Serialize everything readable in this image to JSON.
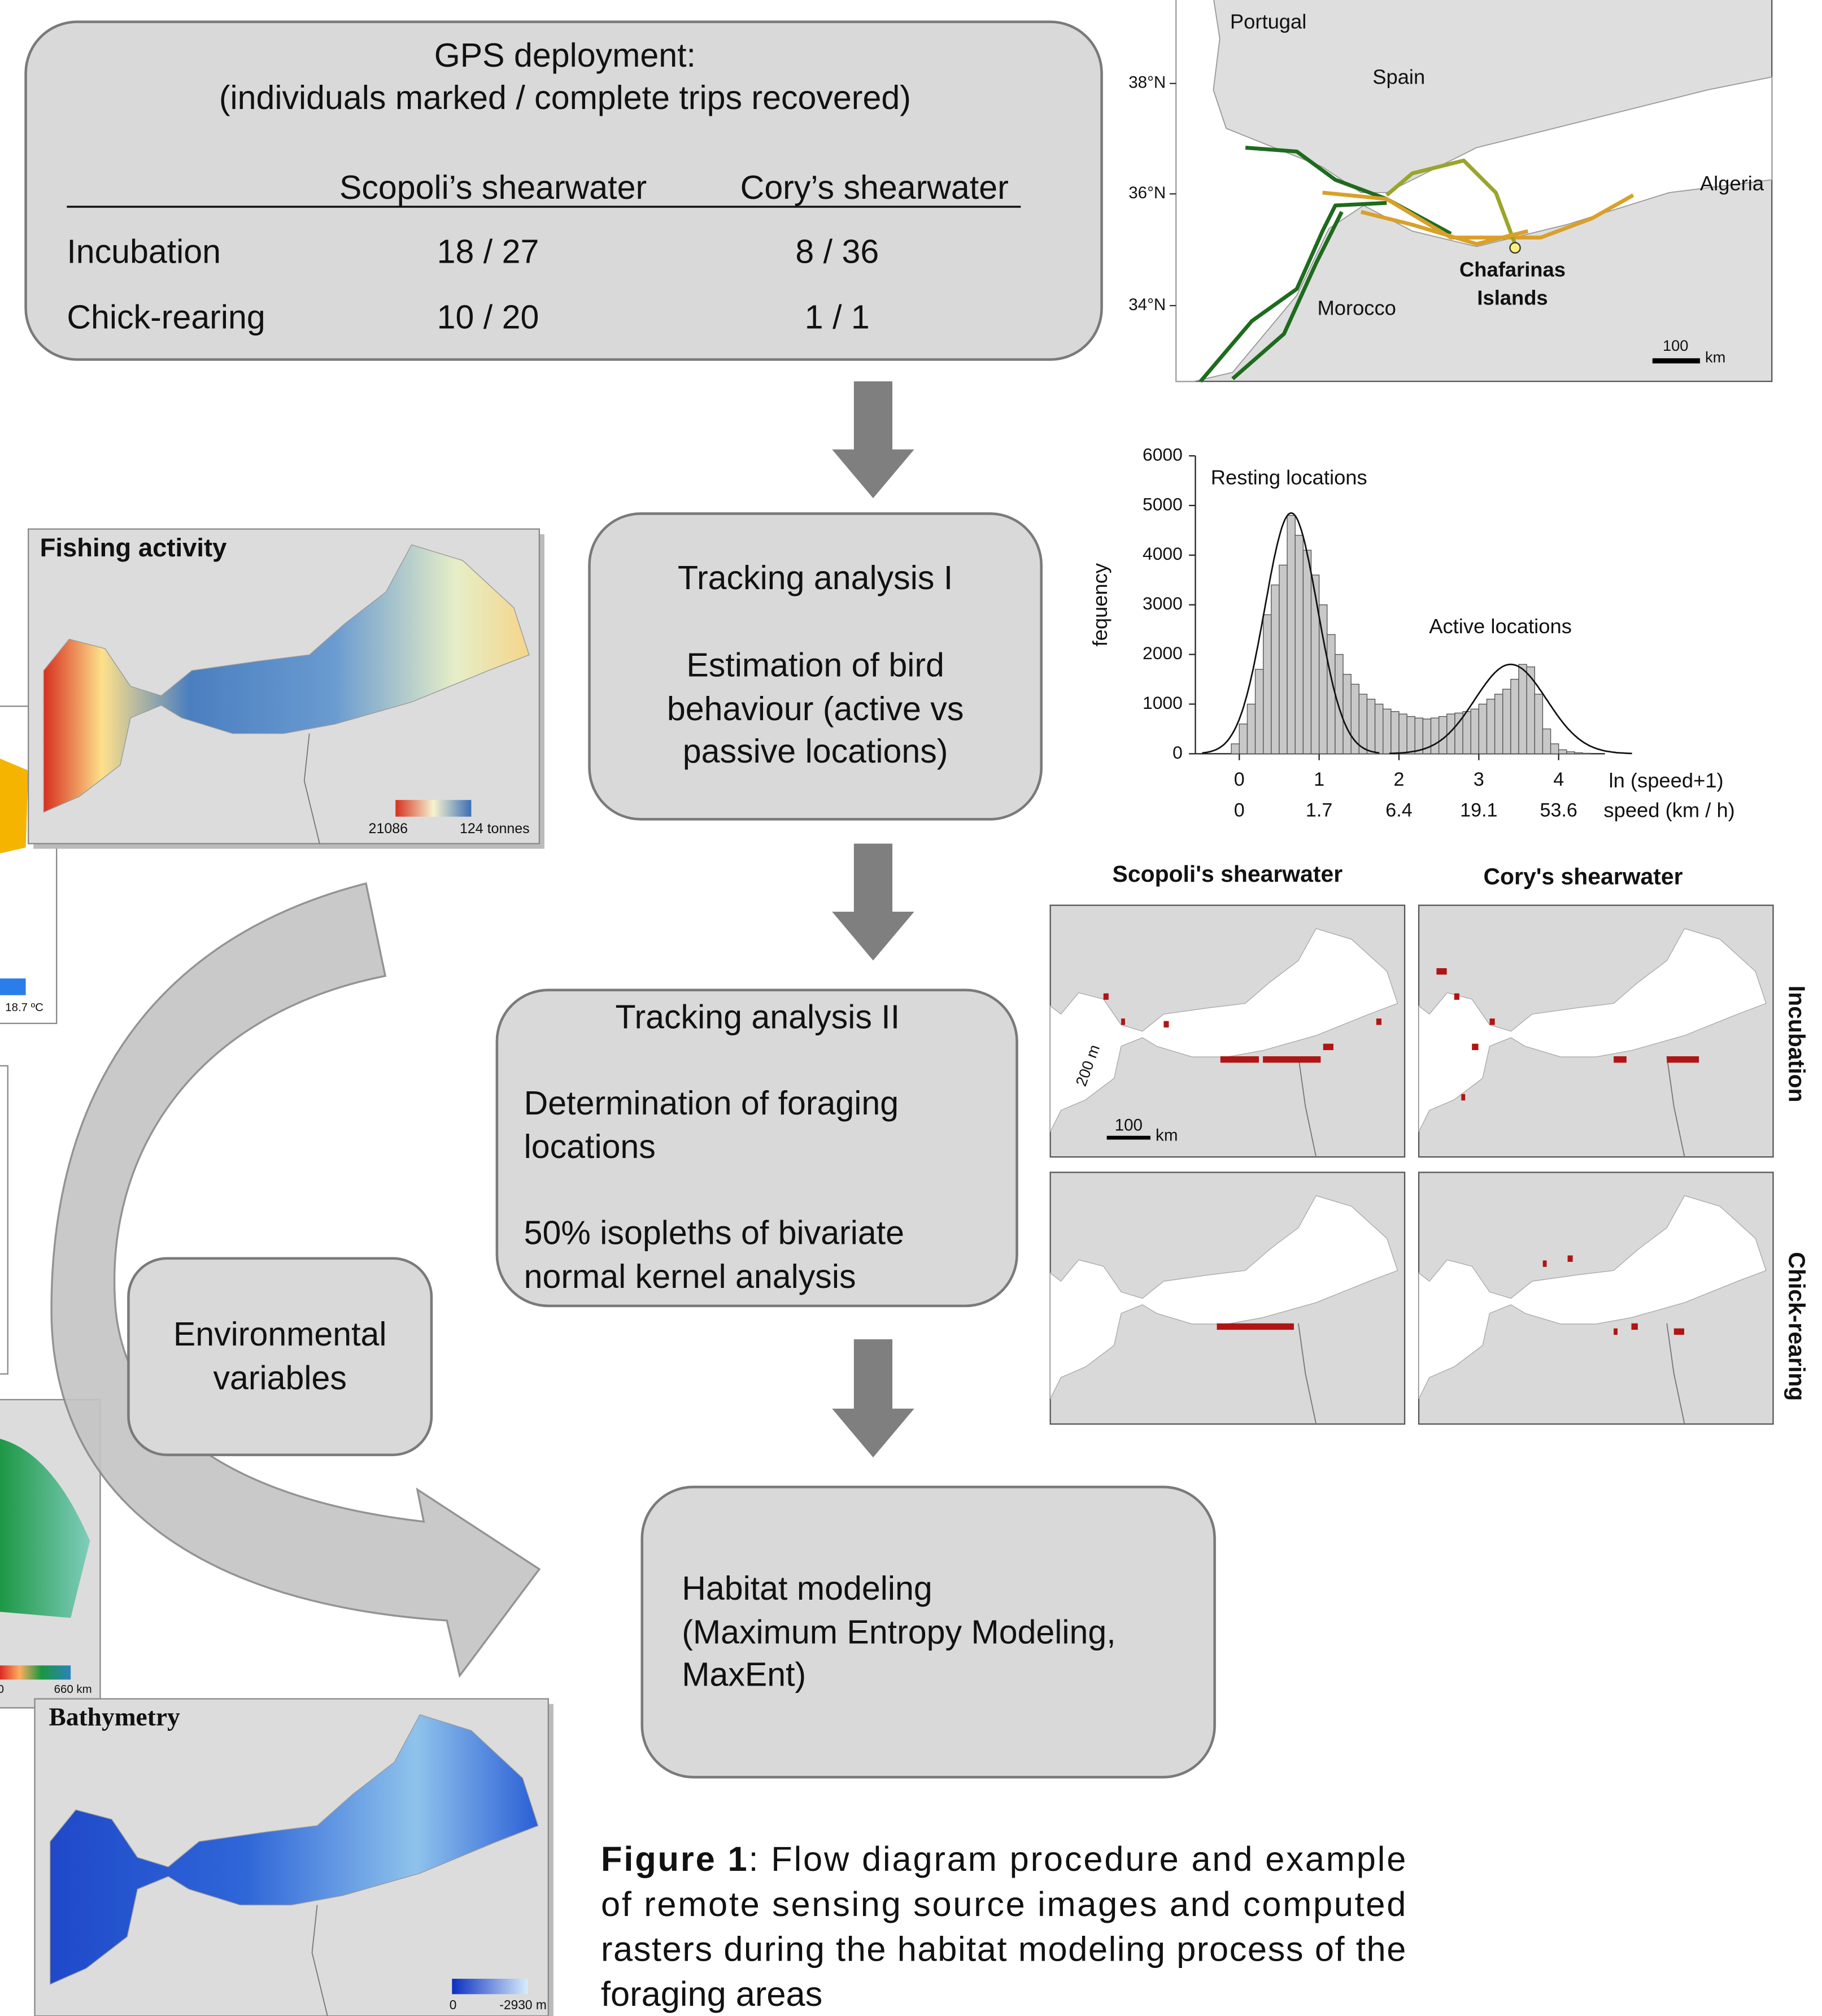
{
  "gps_table": {
    "title": [
      "GPS deployment:",
      "(individuals marked / complete trips recovered)"
    ],
    "columns": [
      "Scopoli’s shearwater",
      "Cory’s shearwater"
    ],
    "rows": [
      [
        "Incubation",
        "18 / 27",
        "8 / 36"
      ],
      [
        "Chick-rearing",
        "10 / 20",
        "1 / 1"
      ]
    ]
  },
  "boxes": {
    "tracking_1": [
      "Tracking analysis I",
      "Estimation of bird",
      "behaviour (active vs",
      "passive locations)"
    ],
    "tracking_2": [
      "Tracking analysis II",
      "Determination of foraging",
      "locations",
      "50% isopleths of bivariate",
      "normal kernel analysis"
    ],
    "environmental": [
      "Environmental",
      "variables"
    ],
    "habitat": [
      "Habitat modeling",
      "(Maximum Entropy Modeling,",
      "MaxEnt)"
    ]
  },
  "track_map": {
    "labels": [
      "Portugal",
      "Spain",
      "Algeria",
      "Chafarinas",
      "Islands",
      "Morocco"
    ],
    "lat_ticks": [
      "38°N",
      "36°N",
      "34°N"
    ],
    "scale": [
      "100",
      "km"
    ]
  },
  "histogram": {
    "xlim": [
      -0.55,
      4.58
    ],
    "ylim": [
      0,
      6000
    ],
    "yticks": [
      0,
      1000,
      2000,
      3000,
      4000,
      5000,
      6000
    ],
    "xticks": [
      0,
      1,
      2,
      3,
      4
    ],
    "speed_labels": [
      0,
      1.7,
      6.4,
      19.1,
      53.6
    ],
    "x_label": "ln (speed+1)",
    "x2_label": "speed (km / h)",
    "y_label": "fequency",
    "annotations": [
      "Resting locations",
      "Active locations"
    ],
    "bins": [
      -0.1,
      0,
      0.1,
      0.2,
      0.3,
      0.4,
      0.5,
      0.6,
      0.7,
      0.8,
      0.9,
      1,
      1.1,
      1.2,
      1.3,
      1.4,
      1.5,
      1.6,
      1.7,
      1.8,
      1.9,
      2,
      2.1,
      2.2,
      2.3,
      2.4,
      2.5,
      2.6,
      2.7,
      2.8,
      2.9,
      3,
      3.1,
      3.2,
      3.3,
      3.4,
      3.5,
      3.6,
      3.7,
      3.8,
      3.9,
      4,
      4.1,
      4.2,
      4.3,
      4.4
    ],
    "counts": [
      200,
      600,
      1000,
      1700,
      2800,
      3400,
      3800,
      4800,
      4400,
      4100,
      3600,
      3000,
      2400,
      2000,
      1600,
      1400,
      1200,
      1100,
      1000,
      900,
      850,
      800,
      750,
      720,
      700,
      720,
      750,
      800,
      820,
      850,
      900,
      1000,
      1100,
      1200,
      1300,
      1500,
      1800,
      1750,
      1200,
      500,
      200,
      80,
      40,
      20,
      10
    ]
  },
  "raster_maps": {
    "fishing": {
      "title": "Fishing activity",
      "legend": [
        "21086",
        "124 tonnes"
      ]
    },
    "bathymetry": {
      "title": "Bathymetry",
      "legend": [
        "0",
        "-2930 m"
      ]
    },
    "sst": {
      "legend": [
        "18.7 ºC"
      ]
    },
    "distance": {
      "legend": [
        "0",
        "660 km"
      ]
    }
  },
  "foraging_maps": {
    "columns": [
      "Scopoli's shearwater",
      "Cory's shearwater"
    ],
    "rows": [
      "Incubation",
      "Chick-rearing"
    ],
    "isobath": "200 m",
    "scale": [
      "100",
      "km"
    ]
  },
  "caption": {
    "label": "Figure 1",
    "lines": [
      ": Flow diagram procedure and example",
      "of remote sensing source images and computed",
      "rasters during the habitat modeling process of the",
      "foraging areas"
    ]
  }
}
